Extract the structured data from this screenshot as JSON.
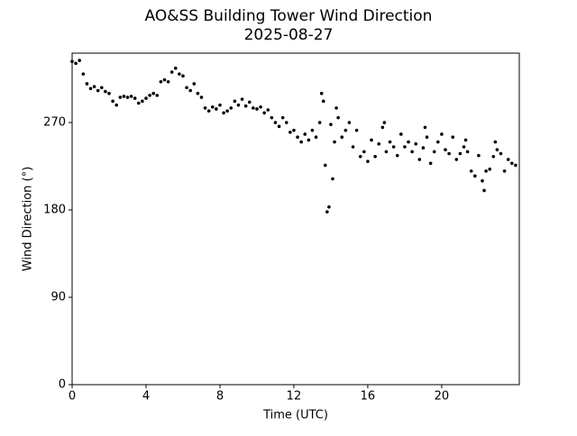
{
  "chart_data": {
    "type": "scatter",
    "title": "AO&SS Building Tower Wind Direction",
    "subtitle": "2025-08-27",
    "x_label": "Time (UTC)",
    "y_label": "Wind Direction (°)",
    "color": "#000000",
    "grid": false,
    "xlim": [
      0,
      24.2
    ],
    "ylim": [
      0,
      341.5
    ],
    "xticks": [
      0,
      4,
      8,
      12,
      16,
      20
    ],
    "yticks": [
      0,
      90,
      180,
      270
    ],
    "x": [
      0.0,
      0.2,
      0.4,
      0.6,
      0.8,
      1.0,
      1.2,
      1.4,
      1.6,
      1.8,
      2.0,
      2.2,
      2.4,
      2.6,
      2.8,
      3.0,
      3.2,
      3.4,
      3.6,
      3.8,
      4.0,
      4.2,
      4.4,
      4.6,
      4.8,
      5.0,
      5.2,
      5.4,
      5.6,
      5.8,
      6.0,
      6.2,
      6.4,
      6.6,
      6.8,
      7.0,
      7.2,
      7.4,
      7.6,
      7.8,
      8.0,
      8.2,
      8.4,
      8.6,
      8.8,
      9.0,
      9.2,
      9.4,
      9.6,
      9.8,
      10.0,
      10.2,
      10.4,
      10.6,
      10.8,
      11.0,
      11.2,
      11.4,
      11.6,
      11.8,
      12.0,
      12.2,
      12.4,
      12.6,
      12.8,
      13.0,
      13.2,
      13.4,
      13.6,
      13.8,
      14.0,
      14.2,
      14.4,
      14.6,
      14.8,
      15.0,
      15.2,
      15.4,
      15.6,
      15.8,
      16.0,
      16.2,
      16.4,
      16.6,
      16.8,
      17.0,
      17.2,
      17.4,
      17.6,
      17.8,
      18.0,
      18.2,
      18.4,
      18.6,
      18.8,
      19.0,
      19.2,
      19.4,
      19.6,
      19.8,
      20.0,
      20.2,
      20.4,
      20.6,
      20.8,
      21.0,
      21.2,
      21.4,
      21.6,
      21.8,
      22.0,
      22.2,
      22.4,
      22.6,
      22.8,
      23.0,
      23.2,
      23.4,
      23.6,
      23.8,
      24.0,
      13.7,
      13.9,
      14.1,
      13.5,
      14.3,
      16.9,
      19.1,
      21.3,
      22.3,
      22.9
    ],
    "values": [
      333,
      331,
      334,
      320,
      310,
      305,
      307,
      303,
      306,
      302,
      300,
      292,
      288,
      296,
      297,
      296,
      297,
      295,
      290,
      292,
      295,
      298,
      300,
      298,
      312,
      314,
      312,
      322,
      326,
      320,
      318,
      306,
      303,
      310,
      300,
      296,
      285,
      282,
      286,
      284,
      288,
      280,
      282,
      285,
      292,
      288,
      294,
      287,
      291,
      285,
      284,
      286,
      280,
      283,
      275,
      270,
      266,
      275,
      270,
      260,
      262,
      255,
      250,
      258,
      252,
      262,
      255,
      270,
      292,
      178,
      268,
      250,
      275,
      255,
      262,
      270,
      245,
      262,
      235,
      240,
      230,
      252,
      235,
      248,
      265,
      240,
      250,
      245,
      236,
      258,
      245,
      250,
      240,
      248,
      232,
      244,
      255,
      228,
      240,
      250,
      258,
      242,
      238,
      255,
      232,
      238,
      245,
      240,
      220,
      215,
      236,
      210,
      220,
      222,
      235,
      242,
      238,
      220,
      232,
      228,
      226,
      226,
      183,
      212,
      300,
      285,
      270,
      265,
      252,
      200,
      250
    ]
  }
}
